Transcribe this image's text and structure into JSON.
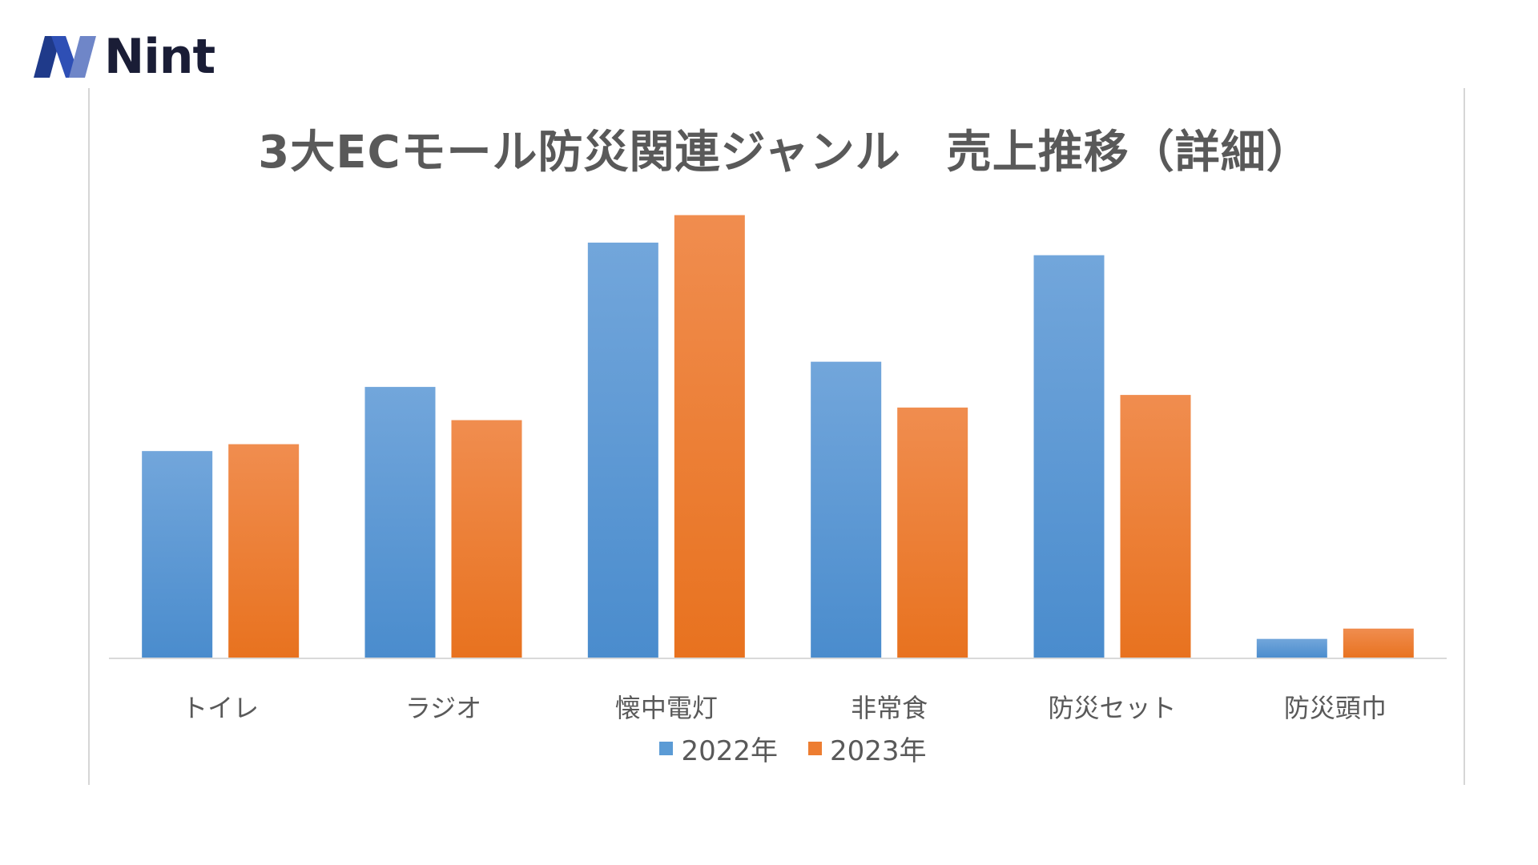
{
  "brand": {
    "name": "Nint"
  },
  "chart_data": {
    "type": "bar",
    "title": "3大ECモール防災関連ジャンル　売上推移（詳細）",
    "xlabel": "",
    "ylabel": "",
    "categories": [
      "トイレ",
      "ラジオ",
      "懐中電灯",
      "非常食",
      "防災セット",
      "防災頭巾"
    ],
    "series": [
      {
        "name": "2022年",
        "color": "#5b9bd5",
        "values": [
          36.2,
          47.4,
          72.6,
          51.8,
          70.4,
          3.4
        ]
      },
      {
        "name": "2023年",
        "color": "#ed7d31",
        "values": [
          37.4,
          41.6,
          77.4,
          43.8,
          46.0,
          5.2
        ]
      }
    ],
    "ylim": [
      0,
      80
    ],
    "grid": false,
    "legend_position": "bottom"
  }
}
